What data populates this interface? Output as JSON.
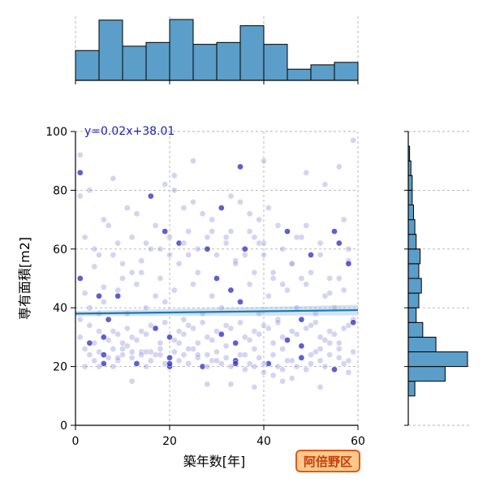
{
  "chart_data": {
    "type": "scatter",
    "xlabel": "築年数[年]",
    "ylabel": "専有面積[m2]",
    "xlim": [
      0,
      60
    ],
    "ylim": [
      0,
      100
    ],
    "x_ticks": [
      0,
      20,
      40,
      60
    ],
    "y_ticks": [
      0,
      20,
      40,
      60,
      80,
      100
    ],
    "grid": true,
    "annotation": "y=0.02x+38.01",
    "badge": "阿倍野区",
    "regression": {
      "slope": 0.02,
      "intercept": 38.01,
      "ci_halfwidth": 1.8
    },
    "top_histogram": {
      "bin_edges": [
        0,
        5,
        10,
        15,
        20,
        25,
        30,
        35,
        40,
        45,
        50,
        55,
        60
      ],
      "counts": [
        48,
        97,
        55,
        61,
        98,
        58,
        61,
        88,
        58,
        18,
        25,
        29
      ]
    },
    "right_histogram": {
      "bin_edges": [
        10,
        15,
        20,
        25,
        30,
        35,
        40,
        45,
        50,
        55,
        60,
        65,
        70,
        75,
        80,
        85,
        90,
        95
      ],
      "counts": [
        5,
        28,
        45,
        21,
        11,
        6,
        8,
        10,
        8,
        9,
        6,
        5,
        4,
        3,
        3,
        2,
        1
      ]
    },
    "points": [
      [
        1,
        86
      ],
      [
        1,
        78
      ],
      [
        2,
        64
      ],
      [
        3,
        80
      ],
      [
        5,
        58
      ],
      [
        6,
        70
      ],
      [
        8,
        84
      ],
      [
        1,
        50
      ],
      [
        4,
        54
      ],
      [
        2,
        45
      ],
      [
        3,
        40
      ],
      [
        1,
        36
      ],
      [
        5,
        38
      ],
      [
        6,
        42
      ],
      [
        9,
        44
      ],
      [
        10,
        50
      ],
      [
        12,
        52
      ],
      [
        14,
        56
      ],
      [
        15,
        62
      ],
      [
        18,
        60
      ],
      [
        20,
        58
      ],
      [
        22,
        62
      ],
      [
        24,
        66
      ],
      [
        26,
        60
      ],
      [
        28,
        64
      ],
      [
        30,
        58
      ],
      [
        32,
        62
      ],
      [
        34,
        56
      ],
      [
        36,
        60
      ],
      [
        38,
        64
      ],
      [
        40,
        58
      ],
      [
        42,
        52
      ],
      [
        44,
        48
      ],
      [
        46,
        55
      ],
      [
        48,
        50
      ],
      [
        50,
        58
      ],
      [
        52,
        62
      ],
      [
        54,
        45
      ],
      [
        56,
        50
      ],
      [
        58,
        56
      ],
      [
        11,
        74
      ],
      [
        13,
        72
      ],
      [
        16,
        78
      ],
      [
        19,
        82
      ],
      [
        21,
        80
      ],
      [
        23,
        74
      ],
      [
        25,
        76
      ],
      [
        27,
        72
      ],
      [
        29,
        70
      ],
      [
        31,
        74
      ],
      [
        33,
        78
      ],
      [
        35,
        76
      ],
      [
        37,
        72
      ],
      [
        39,
        70
      ],
      [
        41,
        74
      ],
      [
        43,
        68
      ],
      [
        45,
        66
      ],
      [
        47,
        64
      ],
      [
        49,
        86
      ],
      [
        53,
        82
      ],
      [
        56,
        88
      ],
      [
        59,
        97
      ],
      [
        40,
        90
      ],
      [
        35,
        88
      ],
      [
        25,
        90
      ],
      [
        21,
        85
      ],
      [
        1,
        92
      ],
      [
        7,
        68
      ],
      [
        9,
        62
      ],
      [
        17,
        68
      ],
      [
        19,
        66
      ],
      [
        23,
        62
      ],
      [
        29,
        66
      ],
      [
        33,
        66
      ],
      [
        37,
        66
      ],
      [
        39,
        62
      ],
      [
        49,
        68
      ],
      [
        55,
        66
      ],
      [
        57,
        70
      ],
      [
        58,
        60
      ],
      [
        2,
        26
      ],
      [
        3,
        24
      ],
      [
        4,
        22
      ],
      [
        5,
        25
      ],
      [
        6,
        21
      ],
      [
        7,
        23
      ],
      [
        8,
        26
      ],
      [
        9,
        22
      ],
      [
        10,
        24
      ],
      [
        11,
        27
      ],
      [
        12,
        23
      ],
      [
        13,
        21
      ],
      [
        14,
        25
      ],
      [
        15,
        20
      ],
      [
        16,
        22
      ],
      [
        17,
        24
      ],
      [
        18,
        26
      ],
      [
        19,
        21
      ],
      [
        20,
        23
      ],
      [
        21,
        25
      ],
      [
        22,
        22
      ],
      [
        23,
        24
      ],
      [
        24,
        21
      ],
      [
        25,
        26
      ],
      [
        26,
        23
      ],
      [
        27,
        20
      ],
      [
        28,
        24
      ],
      [
        29,
        22
      ],
      [
        30,
        25
      ],
      [
        31,
        21
      ],
      [
        32,
        23
      ],
      [
        33,
        20
      ],
      [
        34,
        22
      ],
      [
        35,
        24
      ],
      [
        36,
        19
      ],
      [
        37,
        21
      ],
      [
        38,
        20
      ],
      [
        39,
        23
      ],
      [
        40,
        18
      ],
      [
        41,
        21
      ],
      [
        42,
        17
      ],
      [
        43,
        20
      ],
      [
        44,
        19
      ],
      [
        45,
        22
      ],
      [
        46,
        16
      ],
      [
        47,
        20
      ],
      [
        48,
        23
      ],
      [
        49,
        19
      ],
      [
        50,
        21
      ],
      [
        51,
        25
      ],
      [
        52,
        22
      ],
      [
        53,
        20
      ],
      [
        54,
        24
      ],
      [
        55,
        19
      ],
      [
        56,
        23
      ],
      [
        57,
        21
      ],
      [
        58,
        18
      ],
      [
        59,
        25
      ],
      [
        2,
        20
      ],
      [
        4,
        28
      ],
      [
        6,
        30
      ],
      [
        8,
        32
      ],
      [
        10,
        28
      ],
      [
        12,
        30
      ],
      [
        14,
        32
      ],
      [
        16,
        34
      ],
      [
        18,
        28
      ],
      [
        20,
        30
      ],
      [
        22,
        32
      ],
      [
        24,
        34
      ],
      [
        26,
        28
      ],
      [
        28,
        30
      ],
      [
        30,
        32
      ],
      [
        32,
        34
      ],
      [
        34,
        28
      ],
      [
        36,
        30
      ],
      [
        38,
        32
      ],
      [
        40,
        34
      ],
      [
        42,
        28
      ],
      [
        44,
        30
      ],
      [
        46,
        32
      ],
      [
        48,
        36
      ],
      [
        50,
        34
      ],
      [
        52,
        30
      ],
      [
        54,
        32
      ],
      [
        56,
        28
      ],
      [
        58,
        34
      ],
      [
        3,
        34
      ],
      [
        7,
        36
      ],
      [
        11,
        38
      ],
      [
        15,
        40
      ],
      [
        19,
        42
      ],
      [
        23,
        36
      ],
      [
        27,
        38
      ],
      [
        31,
        40
      ],
      [
        35,
        42
      ],
      [
        39,
        38
      ],
      [
        43,
        36
      ],
      [
        47,
        40
      ],
      [
        51,
        38
      ],
      [
        55,
        40
      ],
      [
        59,
        36
      ],
      [
        5,
        44
      ],
      [
        9,
        46
      ],
      [
        13,
        48
      ],
      [
        17,
        44
      ],
      [
        21,
        46
      ],
      [
        25,
        48
      ],
      [
        29,
        44
      ],
      [
        33,
        46
      ],
      [
        37,
        48
      ],
      [
        41,
        44
      ],
      [
        45,
        46
      ],
      [
        49,
        48
      ],
      [
        53,
        44
      ],
      [
        57,
        46
      ],
      [
        6,
        24
      ],
      [
        8,
        20
      ],
      [
        10,
        26
      ],
      [
        12,
        25
      ],
      [
        14,
        24
      ],
      [
        16,
        25
      ],
      [
        18,
        24
      ],
      [
        20,
        20
      ],
      [
        22,
        28
      ],
      [
        24,
        26
      ],
      [
        26,
        24
      ],
      [
        28,
        20
      ],
      [
        30,
        22
      ],
      [
        32,
        27
      ],
      [
        34,
        21
      ],
      [
        36,
        24
      ],
      [
        38,
        26
      ],
      [
        40,
        21
      ],
      [
        42,
        24
      ],
      [
        44,
        26
      ],
      [
        46,
        22
      ],
      [
        48,
        27
      ],
      [
        50,
        24
      ],
      [
        52,
        26
      ],
      [
        54,
        28
      ],
      [
        56,
        26
      ],
      [
        58,
        22
      ],
      [
        1,
        30
      ],
      [
        3,
        28
      ],
      [
        5,
        32
      ],
      [
        7,
        29
      ],
      [
        9,
        31
      ],
      [
        11,
        33
      ],
      [
        13,
        29
      ],
      [
        15,
        31
      ],
      [
        17,
        33
      ],
      [
        19,
        35
      ],
      [
        21,
        29
      ],
      [
        23,
        31
      ],
      [
        25,
        33
      ],
      [
        27,
        35
      ],
      [
        29,
        29
      ],
      [
        31,
        31
      ],
      [
        33,
        33
      ],
      [
        35,
        35
      ],
      [
        37,
        29
      ],
      [
        39,
        31
      ],
      [
        41,
        33
      ],
      [
        43,
        35
      ],
      [
        45,
        29
      ],
      [
        47,
        31
      ],
      [
        49,
        33
      ],
      [
        51,
        35
      ],
      [
        53,
        29
      ],
      [
        55,
        31
      ],
      [
        57,
        33
      ],
      [
        59,
        35
      ],
      [
        4,
        60
      ],
      [
        8,
        58
      ],
      [
        12,
        64
      ],
      [
        16,
        60
      ],
      [
        20,
        64
      ],
      [
        24,
        58
      ],
      [
        28,
        60
      ],
      [
        32,
        64
      ],
      [
        36,
        58
      ],
      [
        40,
        62
      ],
      [
        44,
        60
      ],
      [
        48,
        64
      ],
      [
        52,
        58
      ],
      [
        56,
        62
      ],
      [
        6,
        47
      ],
      [
        10,
        55
      ],
      [
        14,
        52
      ],
      [
        18,
        50
      ],
      [
        22,
        55
      ],
      [
        26,
        52
      ],
      [
        30,
        50
      ],
      [
        34,
        55
      ],
      [
        38,
        52
      ],
      [
        42,
        50
      ],
      [
        46,
        55
      ],
      [
        50,
        52
      ],
      [
        54,
        50
      ],
      [
        58,
        55
      ],
      [
        12,
        15
      ],
      [
        33,
        14
      ],
      [
        44,
        15
      ],
      [
        52,
        13
      ],
      [
        28,
        14
      ],
      [
        38,
        13
      ],
      [
        20,
        21
      ],
      [
        15,
        25
      ],
      [
        9,
        23
      ],
      [
        5,
        20
      ]
    ]
  }
}
